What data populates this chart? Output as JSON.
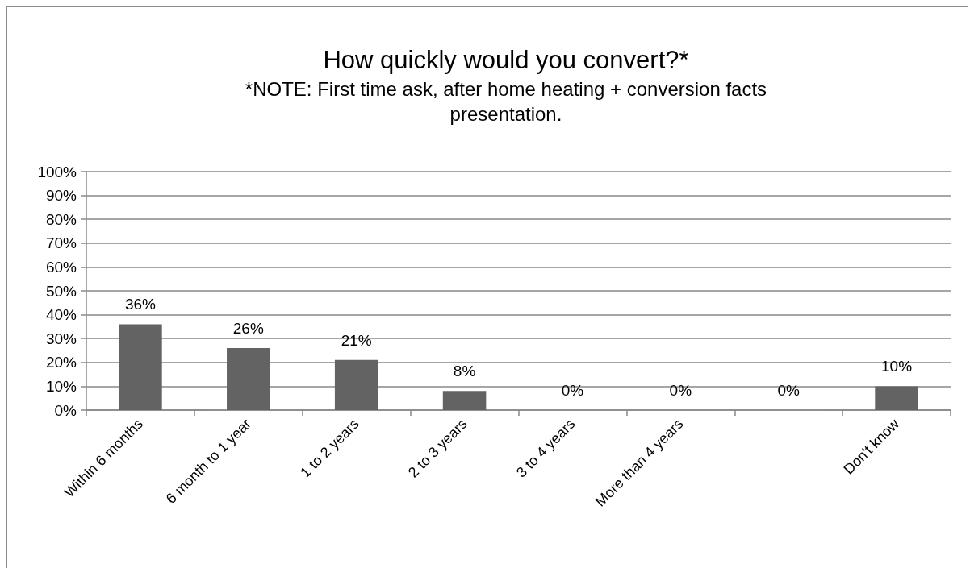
{
  "chart_data": {
    "type": "bar",
    "title": "How quickly would you convert?*",
    "subtitle": "*NOTE: First time ask, after home heating + conversion facts presentation.",
    "categories": [
      "Within 6 months",
      "6 month to 1 year",
      "1 to 2 years",
      "2 to 3 years",
      "3 to 4 years",
      "More than 4 years",
      null,
      "Don't know"
    ],
    "values": [
      36,
      26,
      21,
      8,
      0,
      0,
      0,
      10
    ],
    "value_labels": [
      "36%",
      "26%",
      "21%",
      "8%",
      "0%",
      "0%",
      "0%",
      "10%"
    ],
    "color": "#636363",
    "ylim": [
      0,
      100
    ],
    "yticks": [
      {
        "value": 0,
        "label": "0%"
      },
      {
        "value": 10,
        "label": "10%"
      },
      {
        "value": 20,
        "label": "20%"
      },
      {
        "value": 30,
        "label": "30%"
      },
      {
        "value": 40,
        "label": "40%"
      },
      {
        "value": 50,
        "label": "50%"
      },
      {
        "value": 60,
        "label": "60%"
      },
      {
        "value": 70,
        "label": "70%"
      },
      {
        "value": 80,
        "label": "80%"
      },
      {
        "value": 90,
        "label": "90%"
      },
      {
        "value": 100,
        "label": "100%"
      }
    ],
    "grid": true
  }
}
